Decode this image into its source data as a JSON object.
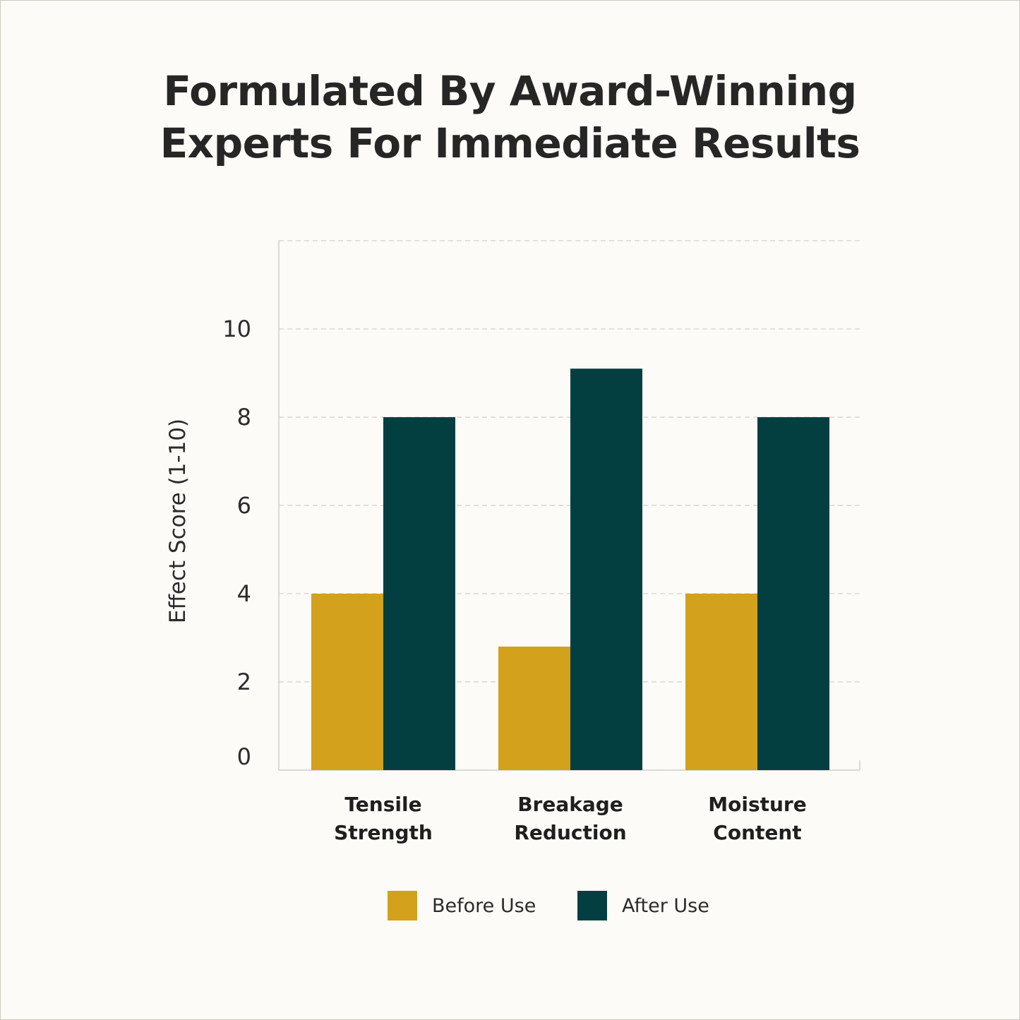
{
  "title_lines": [
    "Formulated By Award-Winning",
    "Experts For Immediate Results"
  ],
  "chart_data": {
    "type": "bar",
    "title": "Formulated By Award-Winning Experts For Immediate Results",
    "categories": [
      [
        "Tensile",
        "Strength"
      ],
      [
        "Breakage",
        "Reduction"
      ],
      [
        "Moisture",
        "Content"
      ]
    ],
    "series": [
      {
        "name": "Before Use",
        "color": "#d4a11d",
        "values": [
          4,
          2.8,
          4
        ]
      },
      {
        "name": "After Use",
        "color": "#033f40",
        "values": [
          8,
          9.1,
          8
        ]
      }
    ],
    "xlabel": "",
    "ylabel": "Effect Score (1-10)",
    "ylim": [
      0,
      12
    ],
    "yticks": [
      0,
      2,
      4,
      6,
      8,
      10
    ],
    "grid": true,
    "legend": "bottom-center"
  }
}
